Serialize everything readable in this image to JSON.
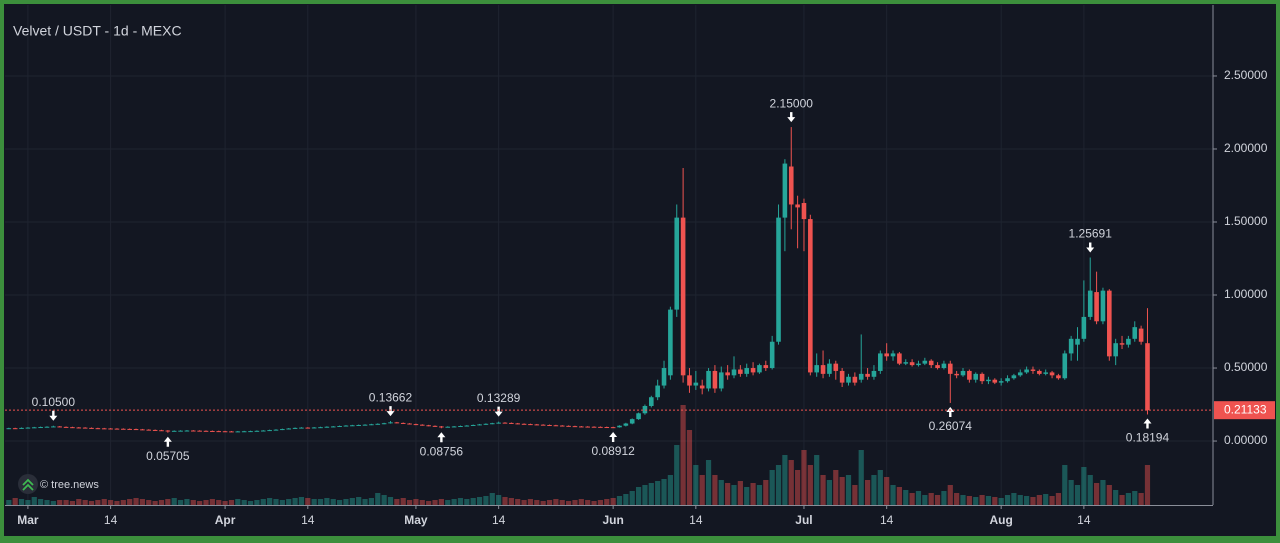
{
  "chart_data": {
    "type": "candlestick",
    "title": "Velvet / USDT - 1d - MEXC",
    "watermark": "© tree.news",
    "up_color": "#26a69a",
    "down_color": "#ef5350",
    "grid": true,
    "xlim": [
      -3.6,
      186.3
    ],
    "ylim": [
      -0.438,
      2.986
    ],
    "xticks": [
      {
        "value": 0,
        "label": "Mar"
      },
      {
        "value": 13,
        "label": "14"
      },
      {
        "value": 31,
        "label": "Apr"
      },
      {
        "value": 44,
        "label": "14"
      },
      {
        "value": 61,
        "label": "May"
      },
      {
        "value": 74,
        "label": "14"
      },
      {
        "value": 92,
        "label": "Jun"
      },
      {
        "value": 105,
        "label": "14"
      },
      {
        "value": 122,
        "label": "Jul"
      },
      {
        "value": 135,
        "label": "14"
      },
      {
        "value": 153,
        "label": "Aug"
      },
      {
        "value": 166,
        "label": "14"
      }
    ],
    "yticks": [
      {
        "value": 0,
        "label": "0.00000"
      },
      {
        "value": 0.5,
        "label": "0.50000"
      },
      {
        "value": 1,
        "label": "1.00000"
      },
      {
        "value": 1.5,
        "label": "1.50000"
      },
      {
        "value": 2,
        "label": "2.00000"
      },
      {
        "value": 2.5,
        "label": "2.50000"
      }
    ],
    "last_price": {
      "value": 0.21133,
      "label": "0.21133"
    },
    "annotations": [
      {
        "x": 4,
        "kind": "high",
        "value": 0.105,
        "label": "0.10500"
      },
      {
        "x": 22,
        "kind": "low",
        "value": 0.05705,
        "label": "0.05705"
      },
      {
        "x": 57,
        "kind": "high",
        "value": 0.13662,
        "label": "0.13662"
      },
      {
        "x": 65,
        "kind": "low",
        "value": 0.08756,
        "label": "0.08756"
      },
      {
        "x": 74,
        "kind": "high",
        "value": 0.13289,
        "label": "0.13289"
      },
      {
        "x": 92,
        "kind": "low",
        "value": 0.08912,
        "label": "0.08912"
      },
      {
        "x": 120,
        "kind": "high",
        "value": 2.15,
        "label": "2.15000"
      },
      {
        "x": 145,
        "kind": "low",
        "value": 0.26074,
        "label": "0.26074"
      },
      {
        "x": 167,
        "kind": "high",
        "value": 1.25691,
        "label": "1.25691"
      },
      {
        "x": 176,
        "kind": "low",
        "value": 0.18194,
        "label": "0.18194"
      }
    ],
    "x": [
      -4,
      -3,
      -2,
      -1,
      0,
      1,
      2,
      3,
      4,
      5,
      6,
      7,
      8,
      9,
      10,
      11,
      12,
      13,
      14,
      15,
      16,
      17,
      18,
      19,
      20,
      21,
      22,
      23,
      24,
      25,
      26,
      27,
      28,
      29,
      30,
      31,
      32,
      33,
      34,
      35,
      36,
      37,
      38,
      39,
      40,
      41,
      42,
      43,
      44,
      45,
      46,
      47,
      48,
      49,
      50,
      51,
      52,
      53,
      54,
      55,
      56,
      57,
      58,
      59,
      60,
      61,
      62,
      63,
      64,
      65,
      66,
      67,
      68,
      69,
      70,
      71,
      72,
      73,
      74,
      75,
      76,
      77,
      78,
      79,
      80,
      81,
      82,
      83,
      84,
      85,
      86,
      87,
      88,
      89,
      90,
      91,
      92,
      93,
      94,
      95,
      96,
      97,
      98,
      99,
      100,
      101,
      102,
      103,
      104,
      105,
      106,
      107,
      108,
      109,
      110,
      111,
      112,
      113,
      114,
      115,
      116,
      117,
      118,
      119,
      120,
      121,
      122,
      123,
      124,
      125,
      126,
      127,
      128,
      129,
      130,
      131,
      132,
      133,
      134,
      135,
      136,
      137,
      138,
      139,
      140,
      141,
      142,
      143,
      144,
      145,
      146,
      147,
      148,
      149,
      150,
      151,
      152,
      153,
      154,
      155,
      156,
      157,
      158,
      159,
      160,
      161,
      162,
      163,
      164,
      165,
      166,
      167,
      168,
      169,
      170,
      171,
      172,
      173,
      174,
      175,
      176
    ],
    "open": [
      0.084,
      0.085,
      0.088,
      0.087,
      0.09,
      0.092,
      0.094,
      0.096,
      0.098,
      0.1,
      0.097,
      0.095,
      0.093,
      0.092,
      0.09,
      0.088,
      0.087,
      0.086,
      0.085,
      0.084,
      0.083,
      0.082,
      0.08,
      0.078,
      0.076,
      0.074,
      0.072,
      0.068,
      0.07,
      0.071,
      0.072,
      0.071,
      0.07,
      0.069,
      0.068,
      0.067,
      0.066,
      0.065,
      0.066,
      0.067,
      0.068,
      0.07,
      0.072,
      0.075,
      0.078,
      0.082,
      0.086,
      0.09,
      0.092,
      0.09,
      0.093,
      0.095,
      0.098,
      0.1,
      0.103,
      0.106,
      0.108,
      0.11,
      0.112,
      0.115,
      0.118,
      0.122,
      0.128,
      0.124,
      0.12,
      0.116,
      0.112,
      0.108,
      0.104,
      0.1,
      0.096,
      0.098,
      0.1,
      0.103,
      0.106,
      0.11,
      0.114,
      0.118,
      0.122,
      0.126,
      0.124,
      0.121,
      0.118,
      0.116,
      0.114,
      0.112,
      0.11,
      0.108,
      0.106,
      0.104,
      0.102,
      0.1,
      0.099,
      0.098,
      0.097,
      0.096,
      0.095,
      0.094,
      0.105,
      0.12,
      0.15,
      0.19,
      0.24,
      0.3,
      0.38,
      0.45,
      0.9,
      1.53,
      0.45,
      0.38,
      0.38,
      0.36,
      0.48,
      0.36,
      0.47,
      0.45,
      0.49,
      0.46,
      0.5,
      0.47,
      0.52,
      0.5,
      0.68,
      1.53,
      1.88,
      1.62,
      1.63,
      1.52,
      0.47,
      0.52,
      0.46,
      0.53,
      0.48,
      0.4,
      0.44,
      0.42,
      0.46,
      0.44,
      0.48,
      0.6,
      0.58,
      0.6,
      0.53,
      0.54,
      0.52,
      0.53,
      0.55,
      0.52,
      0.5,
      0.53,
      0.46,
      0.45,
      0.48,
      0.42,
      0.46,
      0.41,
      0.42,
      0.4,
      0.41,
      0.43,
      0.45,
      0.47,
      0.49,
      0.48,
      0.46,
      0.47,
      0.45,
      0.43,
      0.6,
      0.66,
      0.7,
      0.85,
      1.02,
      0.82,
      1.03,
      0.58,
      0.67,
      0.66,
      0.7,
      0.77,
      0.67
    ],
    "high": [
      0.088,
      0.091,
      0.091,
      0.093,
      0.095,
      0.097,
      0.099,
      0.101,
      0.105,
      0.103,
      0.1,
      0.098,
      0.096,
      0.095,
      0.093,
      0.091,
      0.09,
      0.089,
      0.088,
      0.087,
      0.086,
      0.085,
      0.083,
      0.081,
      0.079,
      0.077,
      0.075,
      0.073,
      0.074,
      0.075,
      0.075,
      0.074,
      0.073,
      0.072,
      0.071,
      0.07,
      0.069,
      0.069,
      0.07,
      0.071,
      0.073,
      0.075,
      0.078,
      0.081,
      0.085,
      0.089,
      0.093,
      0.095,
      0.095,
      0.096,
      0.098,
      0.101,
      0.103,
      0.106,
      0.109,
      0.111,
      0.113,
      0.115,
      0.118,
      0.121,
      0.125,
      0.13662,
      0.131,
      0.127,
      0.123,
      0.119,
      0.115,
      0.111,
      0.107,
      0.103,
      0.101,
      0.103,
      0.106,
      0.109,
      0.113,
      0.117,
      0.121,
      0.125,
      0.13289,
      0.129,
      0.127,
      0.124,
      0.121,
      0.119,
      0.117,
      0.115,
      0.113,
      0.111,
      0.109,
      0.107,
      0.105,
      0.103,
      0.102,
      0.101,
      0.1,
      0.099,
      0.098,
      0.108,
      0.125,
      0.155,
      0.195,
      0.25,
      0.31,
      0.42,
      0.55,
      0.92,
      1.62,
      1.87,
      0.5,
      0.48,
      0.42,
      0.5,
      0.52,
      0.51,
      0.52,
      0.58,
      0.52,
      0.53,
      0.54,
      0.53,
      0.55,
      0.72,
      1.62,
      1.93,
      2.15,
      1.68,
      1.66,
      1.55,
      0.6,
      0.62,
      0.56,
      0.55,
      0.5,
      0.46,
      0.47,
      0.73,
      0.5,
      0.52,
      0.62,
      0.67,
      0.62,
      0.61,
      0.56,
      0.56,
      0.55,
      0.57,
      0.56,
      0.54,
      0.55,
      0.55,
      0.48,
      0.5,
      0.49,
      0.47,
      0.47,
      0.44,
      0.43,
      0.43,
      0.45,
      0.46,
      0.49,
      0.51,
      0.51,
      0.49,
      0.49,
      0.48,
      0.46,
      0.62,
      0.72,
      0.78,
      1.1,
      1.25691,
      1.16,
      1.05,
      1.04,
      0.7,
      0.72,
      0.72,
      0.82,
      0.79,
      0.91
    ],
    "low": [
      0.081,
      0.082,
      0.084,
      0.084,
      0.087,
      0.089,
      0.091,
      0.093,
      0.095,
      0.094,
      0.092,
      0.09,
      0.089,
      0.087,
      0.085,
      0.084,
      0.083,
      0.082,
      0.081,
      0.08,
      0.079,
      0.077,
      0.075,
      0.073,
      0.071,
      0.069,
      0.05705,
      0.065,
      0.067,
      0.068,
      0.068,
      0.067,
      0.066,
      0.065,
      0.064,
      0.063,
      0.062,
      0.062,
      0.063,
      0.064,
      0.065,
      0.067,
      0.069,
      0.072,
      0.075,
      0.079,
      0.083,
      0.087,
      0.087,
      0.087,
      0.09,
      0.092,
      0.095,
      0.097,
      0.1,
      0.103,
      0.105,
      0.107,
      0.109,
      0.112,
      0.115,
      0.119,
      0.121,
      0.117,
      0.113,
      0.109,
      0.105,
      0.101,
      0.097,
      0.08756,
      0.093,
      0.095,
      0.097,
      0.1,
      0.103,
      0.107,
      0.111,
      0.115,
      0.119,
      0.121,
      0.118,
      0.115,
      0.113,
      0.111,
      0.109,
      0.107,
      0.105,
      0.103,
      0.101,
      0.099,
      0.097,
      0.096,
      0.095,
      0.094,
      0.093,
      0.092,
      0.08912,
      0.092,
      0.1,
      0.115,
      0.145,
      0.18,
      0.23,
      0.28,
      0.36,
      0.42,
      0.85,
      0.4,
      0.33,
      0.35,
      0.32,
      0.34,
      0.33,
      0.34,
      0.42,
      0.43,
      0.44,
      0.44,
      0.45,
      0.46,
      0.48,
      0.49,
      0.66,
      1.3,
      1.45,
      1.32,
      1.3,
      0.45,
      0.44,
      0.43,
      0.44,
      0.42,
      0.37,
      0.38,
      0.38,
      0.4,
      0.42,
      0.42,
      0.46,
      0.55,
      0.55,
      0.52,
      0.52,
      0.51,
      0.51,
      0.52,
      0.5,
      0.49,
      0.49,
      0.26074,
      0.43,
      0.44,
      0.4,
      0.4,
      0.39,
      0.39,
      0.39,
      0.38,
      0.4,
      0.42,
      0.44,
      0.46,
      0.46,
      0.45,
      0.45,
      0.43,
      0.42,
      0.42,
      0.55,
      0.55,
      0.68,
      0.83,
      0.8,
      0.8,
      0.55,
      0.52,
      0.63,
      0.64,
      0.68,
      0.66,
      0.18194
    ],
    "close": [
      0.085,
      0.088,
      0.087,
      0.09,
      0.092,
      0.094,
      0.096,
      0.098,
      0.1,
      0.097,
      0.095,
      0.093,
      0.092,
      0.09,
      0.088,
      0.087,
      0.086,
      0.085,
      0.084,
      0.083,
      0.082,
      0.08,
      0.078,
      0.076,
      0.074,
      0.072,
      0.068,
      0.07,
      0.071,
      0.072,
      0.071,
      0.07,
      0.069,
      0.068,
      0.067,
      0.066,
      0.065,
      0.066,
      0.067,
      0.068,
      0.07,
      0.072,
      0.075,
      0.078,
      0.082,
      0.086,
      0.09,
      0.092,
      0.09,
      0.093,
      0.095,
      0.098,
      0.1,
      0.103,
      0.106,
      0.108,
      0.11,
      0.112,
      0.115,
      0.118,
      0.122,
      0.128,
      0.124,
      0.12,
      0.116,
      0.112,
      0.108,
      0.104,
      0.1,
      0.096,
      0.098,
      0.1,
      0.103,
      0.106,
      0.11,
      0.114,
      0.118,
      0.122,
      0.126,
      0.124,
      0.121,
      0.118,
      0.116,
      0.114,
      0.112,
      0.11,
      0.108,
      0.106,
      0.104,
      0.102,
      0.1,
      0.099,
      0.098,
      0.097,
      0.096,
      0.095,
      0.094,
      0.105,
      0.12,
      0.15,
      0.19,
      0.24,
      0.3,
      0.38,
      0.5,
      0.9,
      1.53,
      0.45,
      0.38,
      0.4,
      0.36,
      0.48,
      0.36,
      0.47,
      0.45,
      0.49,
      0.46,
      0.5,
      0.47,
      0.52,
      0.5,
      0.68,
      1.53,
      1.9,
      1.62,
      1.6,
      1.52,
      0.47,
      0.52,
      0.46,
      0.53,
      0.48,
      0.4,
      0.44,
      0.4,
      0.46,
      0.44,
      0.48,
      0.6,
      0.58,
      0.6,
      0.53,
      0.54,
      0.52,
      0.53,
      0.55,
      0.52,
      0.5,
      0.53,
      0.46,
      0.45,
      0.48,
      0.42,
      0.46,
      0.41,
      0.42,
      0.4,
      0.41,
      0.43,
      0.45,
      0.47,
      0.49,
      0.48,
      0.46,
      0.47,
      0.45,
      0.43,
      0.6,
      0.7,
      0.7,
      0.85,
      1.03,
      0.82,
      1.03,
      0.58,
      0.67,
      0.66,
      0.7,
      0.78,
      0.68,
      0.21133
    ],
    "volume": [
      6,
      5,
      7,
      6,
      5,
      8,
      6,
      5,
      4,
      5,
      5,
      4,
      6,
      5,
      4,
      5,
      6,
      5,
      4,
      5,
      6,
      7,
      6,
      5,
      4,
      5,
      6,
      7,
      5,
      6,
      5,
      4,
      5,
      6,
      5,
      4,
      5,
      6,
      5,
      4,
      5,
      6,
      7,
      6,
      5,
      6,
      7,
      8,
      7,
      6,
      6,
      7,
      6,
      5,
      6,
      7,
      8,
      6,
      7,
      12,
      10,
      8,
      6,
      7,
      5,
      6,
      5,
      4,
      5,
      6,
      5,
      6,
      7,
      6,
      7,
      8,
      9,
      12,
      10,
      8,
      7,
      6,
      5,
      6,
      5,
      4,
      5,
      6,
      5,
      4,
      5,
      6,
      5,
      4,
      5,
      6,
      7,
      9,
      11,
      14,
      18,
      20,
      22,
      24,
      26,
      30,
      60,
      100,
      75,
      40,
      30,
      45,
      30,
      25,
      22,
      20,
      24,
      18,
      22,
      20,
      25,
      35,
      40,
      50,
      45,
      35,
      55,
      40,
      50,
      30,
      25,
      35,
      28,
      30,
      20,
      55,
      25,
      30,
      35,
      28,
      20,
      18,
      15,
      12,
      14,
      10,
      12,
      10,
      14,
      20,
      12,
      10,
      9,
      8,
      10,
      9,
      8,
      7,
      10,
      12,
      10,
      9,
      8,
      10,
      11,
      9,
      12,
      40,
      25,
      20,
      38,
      30,
      22,
      25,
      20,
      15,
      10,
      12,
      14,
      12,
      40
    ]
  }
}
